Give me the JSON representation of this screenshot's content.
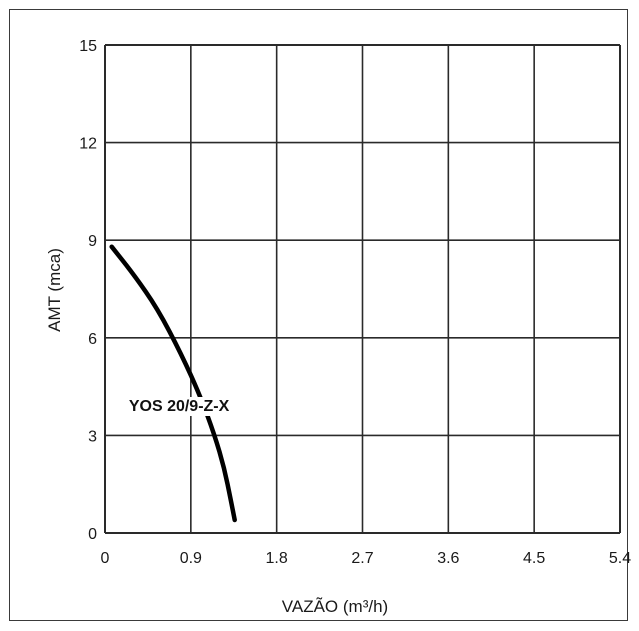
{
  "chart_data": {
    "type": "line",
    "title": "",
    "xlabel": "VAZÃO  (m³/h)",
    "ylabel": "AMT (mca)",
    "xlim": [
      0,
      5.4
    ],
    "ylim": [
      0,
      15
    ],
    "xticks": [
      "0",
      "0.9",
      "1.8",
      "2.7",
      "3.6",
      "4.5",
      "5.4"
    ],
    "yticks": [
      "0",
      "3",
      "6",
      "9",
      "12",
      "15"
    ],
    "grid": true,
    "series": [
      {
        "name": "YOS 20/9-Z-X",
        "color": "#000000",
        "points": [
          [
            0.07,
            8.8
          ],
          [
            0.3,
            7.95
          ],
          [
            0.55,
            6.9
          ],
          [
            0.8,
            5.5
          ],
          [
            1.0,
            4.2
          ],
          [
            1.15,
            3.0
          ],
          [
            1.25,
            2.0
          ],
          [
            1.32,
            1.0
          ],
          [
            1.36,
            0.4
          ]
        ]
      }
    ]
  }
}
